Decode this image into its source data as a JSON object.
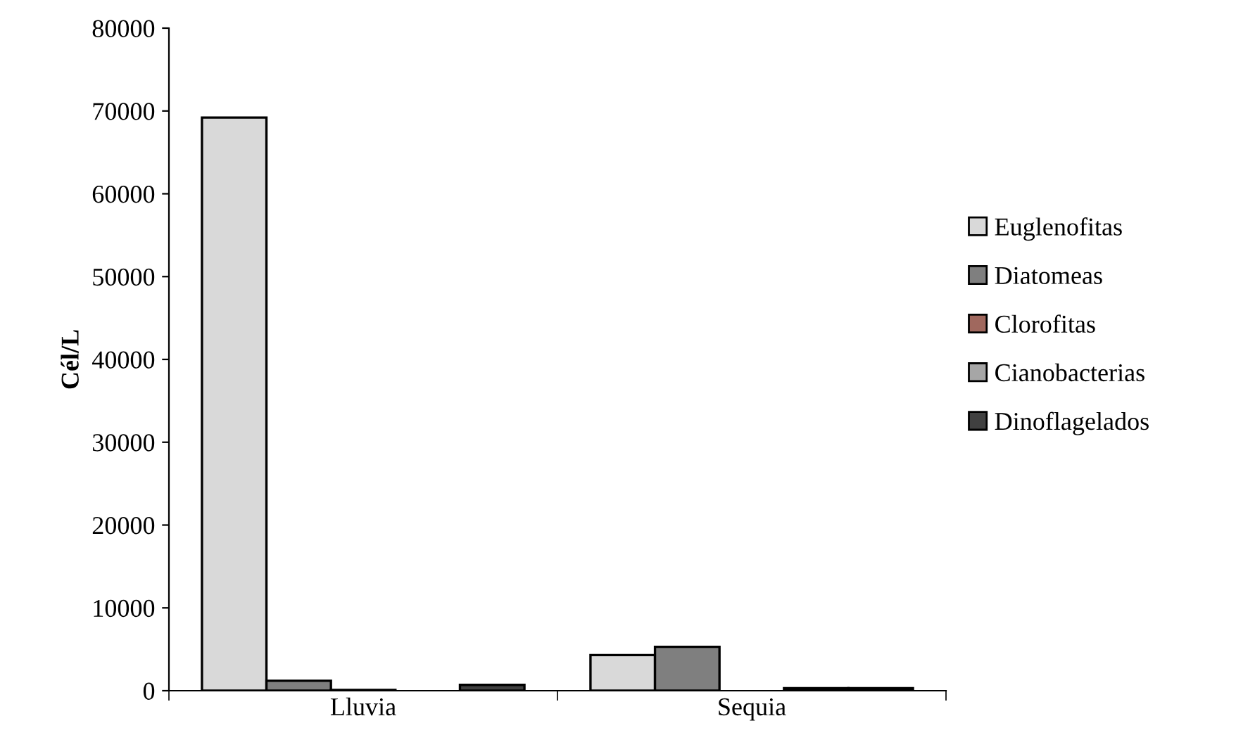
{
  "chart_data": {
    "type": "bar",
    "ylabel": "Cél/L",
    "categories": [
      "Lluvia",
      "Sequia"
    ],
    "series": [
      {
        "name": "Euglenofitas",
        "color": "#d9d9d9",
        "values": [
          69200,
          4300
        ]
      },
      {
        "name": "Diatomeas",
        "color": "#7f7f7f",
        "values": [
          1200,
          5300
        ]
      },
      {
        "name": "Clorofitas",
        "color": "#a0685e",
        "values": [
          100,
          null
        ]
      },
      {
        "name": "Cianobacterias",
        "color": "#a6a6a6",
        "values": [
          null,
          300
        ]
      },
      {
        "name": "Dinoflagelados",
        "color": "#404040",
        "values": [
          700,
          300
        ]
      }
    ],
    "ylim": [
      0,
      80000
    ],
    "yticks": [
      0,
      10000,
      20000,
      30000,
      40000,
      50000,
      60000,
      70000,
      80000
    ],
    "grid": false,
    "legend": "right"
  }
}
